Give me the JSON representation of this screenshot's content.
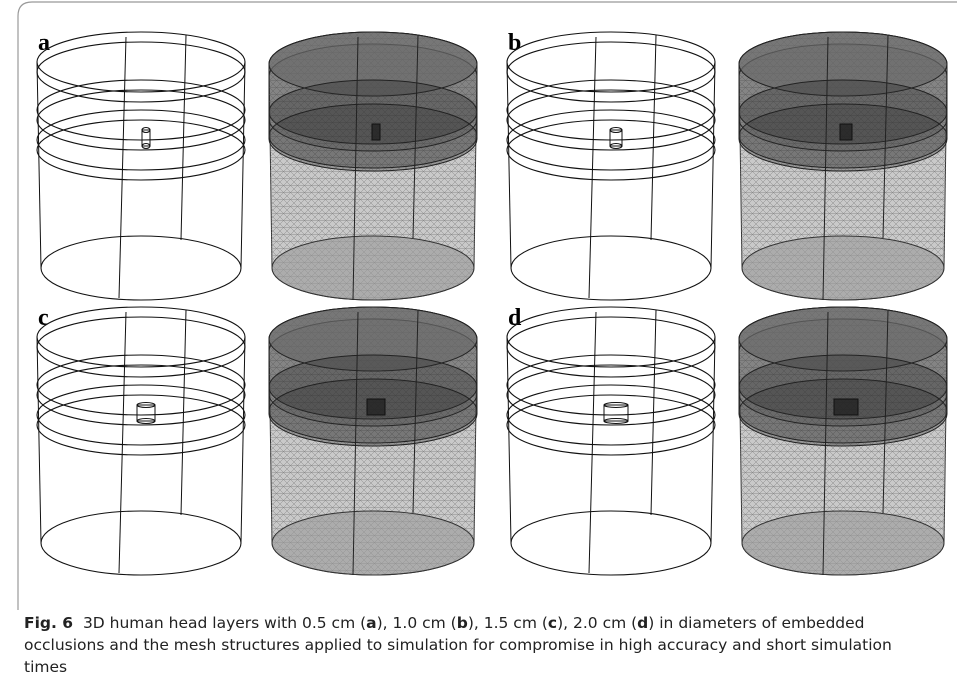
{
  "panels": [
    {
      "label": "a"
    },
    {
      "label": "b"
    },
    {
      "label": "c"
    },
    {
      "label": "d"
    }
  ],
  "caption": {
    "label": "Fig. 6",
    "parts": [
      "3D human head layers with 0.5 cm (",
      "a",
      "), 1.0 cm (",
      "b",
      "), 1.5 cm (",
      "c",
      "), 2.0 cm (",
      "d",
      ") in diameters of embedded occlusions and the mesh structures applied to simulation for compromise in high accuracy and short simulation times"
    ]
  }
}
